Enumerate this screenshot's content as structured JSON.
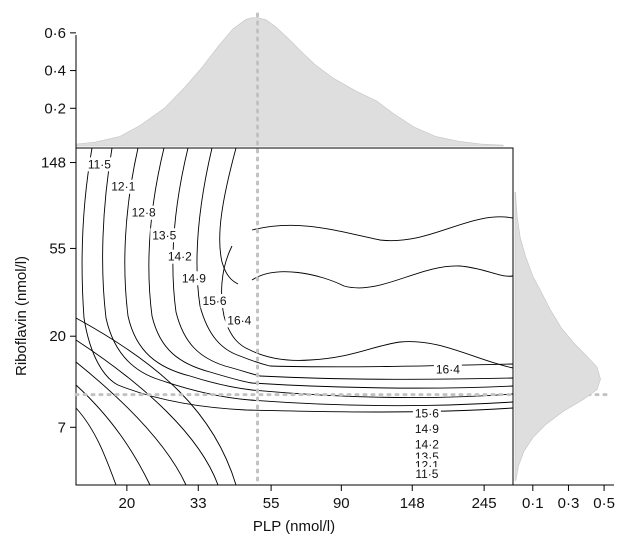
{
  "chart_data": {
    "type": "contour",
    "xlabel": "PLP (nmol/l)",
    "ylabel": "Riboflavin (nmol/l)",
    "x_scale": "log",
    "y_scale": "log",
    "xlim": [
      14,
      300
    ],
    "ylim": [
      3.6,
      175
    ],
    "x_ticks": [
      "20",
      "33",
      "55",
      "90",
      "148",
      "245"
    ],
    "y_ticks": [
      "7",
      "20",
      "55",
      "148"
    ],
    "x_tick_values": [
      20,
      33,
      55,
      90,
      148,
      245
    ],
    "y_tick_values": [
      7,
      20,
      55,
      148
    ],
    "contour_levels": [
      "11·5",
      "12·1",
      "12·8",
      "13·5",
      "14·2",
      "14·9",
      "15·6",
      "16·4"
    ],
    "contour_labels_upper": [
      {
        "text": "11·5",
        "x": 16.5,
        "y": 145
      },
      {
        "text": "12·1",
        "x": 19.5,
        "y": 112
      },
      {
        "text": "12·8",
        "x": 22.5,
        "y": 83
      },
      {
        "text": "13·5",
        "x": 26,
        "y": 64
      },
      {
        "text": "14·2",
        "x": 29,
        "y": 50
      },
      {
        "text": "14·9",
        "x": 32,
        "y": 39
      },
      {
        "text": "15·6",
        "x": 37,
        "y": 30
      },
      {
        "text": "16·4",
        "x": 44,
        "y": 24
      }
    ],
    "contour_labels_lower": [
      {
        "text": "16·4",
        "x": 190,
        "y": 13.6
      },
      {
        "text": "15·6",
        "x": 164,
        "y": 8.2
      },
      {
        "text": "14·9",
        "x": 164,
        "y": 6.85
      },
      {
        "text": "14·2",
        "x": 164,
        "y": 5.75
      },
      {
        "text": "13·5",
        "x": 164,
        "y": 4.98
      },
      {
        "text": "12·1",
        "x": 164,
        "y": 4.5
      },
      {
        "text": "11·5",
        "x": 164,
        "y": 4.08
      }
    ],
    "reference_lines": {
      "x": 50,
      "y": 10.2
    },
    "top_density": {
      "y_ticks": [
        "0·2",
        "0·4",
        "0·6"
      ],
      "y_tick_values": [
        0.2,
        0.4,
        0.6
      ],
      "ylim": [
        0,
        0.7
      ],
      "x": [
        14,
        16,
        19,
        22,
        26,
        30,
        34,
        38,
        42,
        46,
        48,
        50,
        53,
        57,
        62,
        68,
        75,
        85,
        100,
        115,
        130,
        150,
        175,
        205,
        240,
        280
      ],
      "density": [
        0.01,
        0.02,
        0.05,
        0.11,
        0.2,
        0.31,
        0.42,
        0.53,
        0.62,
        0.67,
        0.68,
        0.68,
        0.67,
        0.63,
        0.57,
        0.5,
        0.43,
        0.36,
        0.29,
        0.24,
        0.17,
        0.1,
        0.05,
        0.025,
        0.01,
        0.005
      ]
    },
    "right_density": {
      "x_ticks": [
        "0·1",
        "0·3",
        "0·5"
      ],
      "x_tick_values": [
        0.1,
        0.3,
        0.5
      ],
      "xlim": [
        0,
        0.55
      ],
      "y": [
        3.8,
        4.5,
        5.3,
        6.2,
        7.2,
        8.4,
        9.6,
        10.8,
        12.2,
        14,
        16,
        18.5,
        22,
        27,
        33,
        40,
        50,
        62,
        80,
        105
      ],
      "density": [
        0.005,
        0.02,
        0.05,
        0.1,
        0.17,
        0.27,
        0.38,
        0.46,
        0.48,
        0.46,
        0.4,
        0.33,
        0.26,
        0.2,
        0.15,
        0.1,
        0.06,
        0.03,
        0.012,
        0.003
      ]
    }
  }
}
